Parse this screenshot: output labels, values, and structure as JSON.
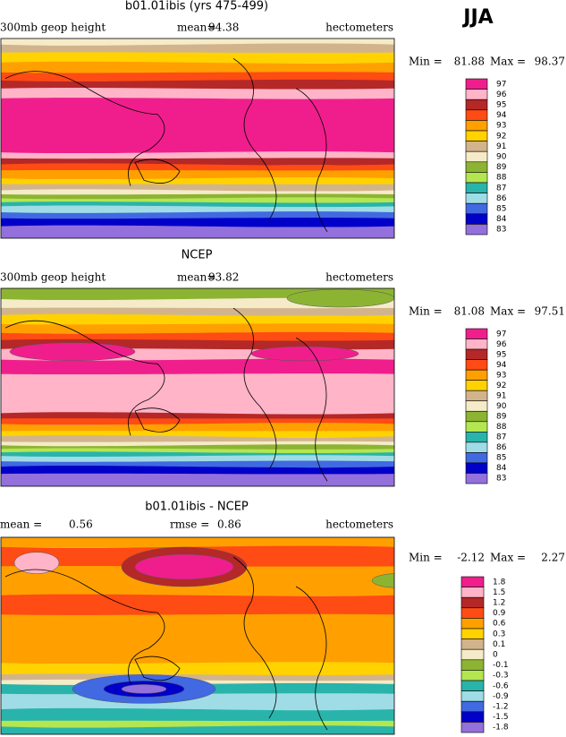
{
  "season": "JJA",
  "panels": [
    {
      "title": "b01.01ibis (yrs 475-499)",
      "labels": [
        "300mb geop height",
        "mean=",
        94.38,
        "hectometers"
      ],
      "min_label": "Min =",
      "min": 81.88,
      "max_label": "Max =",
      "max": 98.37,
      "colorbar": [
        {
          "label": "97",
          "color": "#f01e8c"
        },
        {
          "label": "96",
          "color": "#ffb4c8"
        },
        {
          "label": "95",
          "color": "#b42828"
        },
        {
          "label": "94",
          "color": "#ff4b14"
        },
        {
          "label": "93",
          "color": "#ffa000"
        },
        {
          "label": "92",
          "color": "#ffd200"
        },
        {
          "label": "91",
          "color": "#d2b48c"
        },
        {
          "label": "90",
          "color": "#f5ebc8"
        },
        {
          "label": "89",
          "color": "#8cb432"
        },
        {
          "label": "88",
          "color": "#b4e650"
        },
        {
          "label": "87",
          "color": "#28b4aa"
        },
        {
          "label": "86",
          "color": "#a0dce6"
        },
        {
          "label": "85",
          "color": "#4169e1"
        },
        {
          "label": "84",
          "color": "#0000c8"
        },
        {
          "label": "83",
          "color": "#9370db"
        }
      ]
    },
    {
      "title": "NCEP",
      "labels": [
        "300mb geop height",
        "mean=",
        93.82,
        "hectometers"
      ],
      "min_label": "Min =",
      "min": 81.08,
      "max_label": "Max =",
      "max": 97.51,
      "colorbar": [
        {
          "label": "97",
          "color": "#f01e8c"
        },
        {
          "label": "96",
          "color": "#ffb4c8"
        },
        {
          "label": "95",
          "color": "#b42828"
        },
        {
          "label": "94",
          "color": "#ff4b14"
        },
        {
          "label": "93",
          "color": "#ffa000"
        },
        {
          "label": "92",
          "color": "#ffd200"
        },
        {
          "label": "91",
          "color": "#d2b48c"
        },
        {
          "label": "90",
          "color": "#f5ebc8"
        },
        {
          "label": "89",
          "color": "#8cb432"
        },
        {
          "label": "88",
          "color": "#b4e650"
        },
        {
          "label": "87",
          "color": "#28b4aa"
        },
        {
          "label": "86",
          "color": "#a0dce6"
        },
        {
          "label": "85",
          "color": "#4169e1"
        },
        {
          "label": "84",
          "color": "#0000c8"
        },
        {
          "label": "83",
          "color": "#9370db"
        }
      ]
    },
    {
      "title": "b01.01ibis - NCEP",
      "labels": [
        "mean =",
        0.56,
        "rmse =",
        0.86,
        "hectometers"
      ],
      "min_label": "Min =",
      "min": -2.12,
      "max_label": "Max =",
      "max": 2.27,
      "colorbar": [
        {
          "label": "1.8",
          "color": "#f01e8c"
        },
        {
          "label": "1.5",
          "color": "#ffb4c8"
        },
        {
          "label": "1.2",
          "color": "#b42828"
        },
        {
          "label": "0.9",
          "color": "#ff4b14"
        },
        {
          "label": "0.6",
          "color": "#ffa000"
        },
        {
          "label": "0.3",
          "color": "#ffd200"
        },
        {
          "label": "0.1",
          "color": "#d2b48c"
        },
        {
          "label": "0",
          "color": "#f5ebc8"
        },
        {
          "label": "-0.1",
          "color": "#8cb432"
        },
        {
          "label": "-0.3",
          "color": "#b4e650"
        },
        {
          "label": "-0.6",
          "color": "#28b4aa"
        },
        {
          "label": "-0.9",
          "color": "#a0dce6"
        },
        {
          "label": "-1.2",
          "color": "#4169e1"
        },
        {
          "label": "-1.5",
          "color": "#0000c8"
        },
        {
          "label": "-1.8",
          "color": "#9370db"
        }
      ]
    }
  ]
}
